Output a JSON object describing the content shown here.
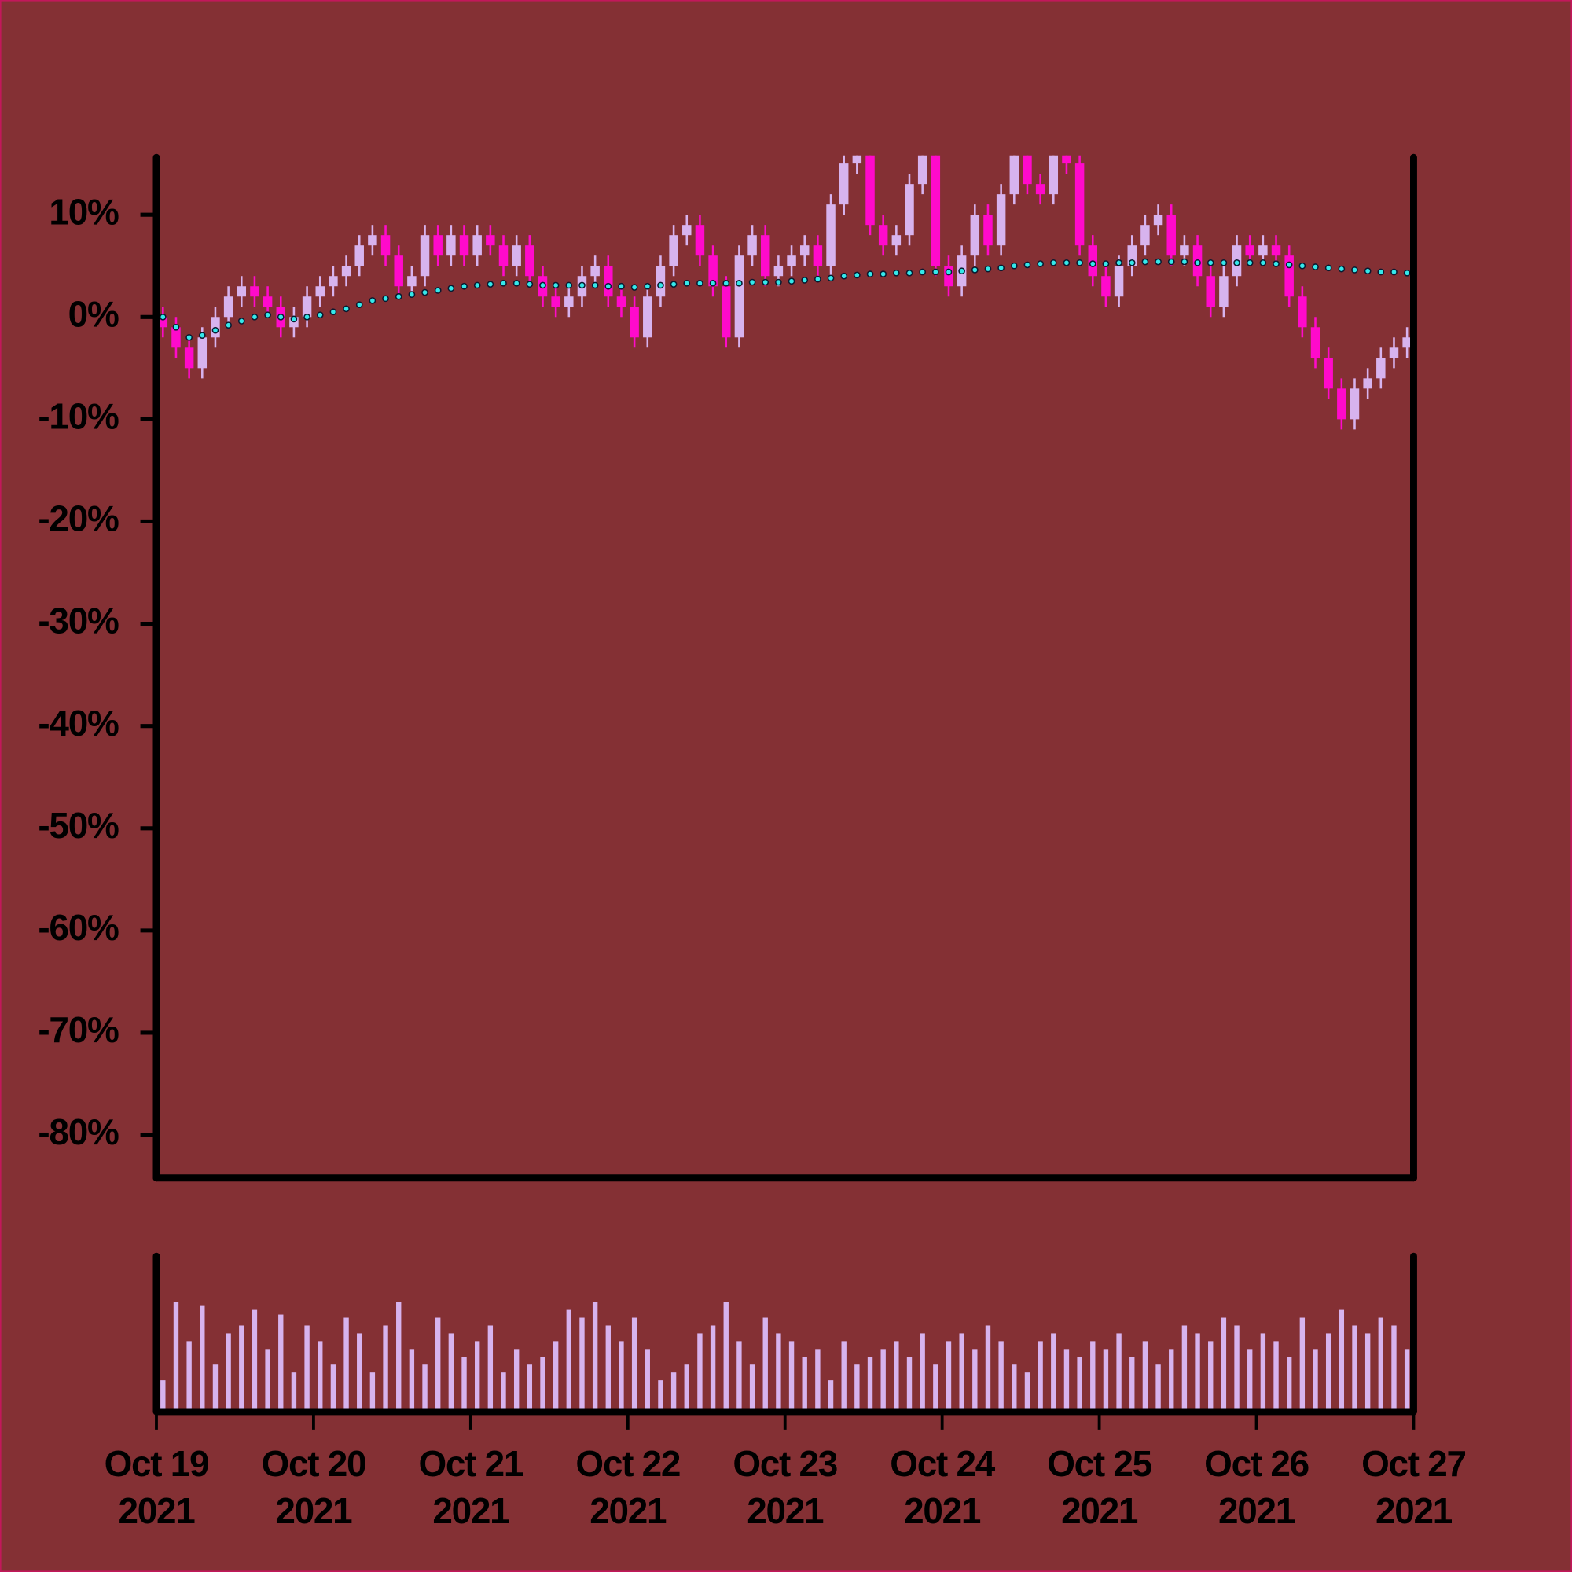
{
  "chart_data": {
    "type": "candlestick",
    "x": [
      "2021-10-19T01:00",
      "2021-10-19T03:00",
      "2021-10-19T05:00",
      "2021-10-19T07:00",
      "2021-10-19T09:00",
      "2021-10-19T11:00",
      "2021-10-19T13:00",
      "2021-10-19T15:00",
      "2021-10-19T17:00",
      "2021-10-19T19:00",
      "2021-10-19T21:00",
      "2021-10-19T23:00",
      "2021-10-20T01:00",
      "2021-10-20T03:00",
      "2021-10-20T05:00",
      "2021-10-20T07:00",
      "2021-10-20T09:00",
      "2021-10-20T11:00",
      "2021-10-20T13:00",
      "2021-10-20T15:00",
      "2021-10-20T17:00",
      "2021-10-20T19:00",
      "2021-10-20T21:00",
      "2021-10-20T23:00",
      "2021-10-21T01:00",
      "2021-10-21T03:00",
      "2021-10-21T05:00",
      "2021-10-21T07:00",
      "2021-10-21T09:00",
      "2021-10-21T11:00",
      "2021-10-21T13:00",
      "2021-10-21T15:00",
      "2021-10-21T17:00",
      "2021-10-21T19:00",
      "2021-10-21T21:00",
      "2021-10-21T23:00",
      "2021-10-22T01:00",
      "2021-10-22T03:00",
      "2021-10-22T05:00",
      "2021-10-22T07:00",
      "2021-10-22T09:00",
      "2021-10-22T11:00",
      "2021-10-22T13:00",
      "2021-10-22T15:00",
      "2021-10-22T17:00",
      "2021-10-22T19:00",
      "2021-10-22T21:00",
      "2021-10-22T23:00",
      "2021-10-23T01:00",
      "2021-10-23T03:00",
      "2021-10-23T05:00",
      "2021-10-23T07:00",
      "2021-10-23T09:00",
      "2021-10-23T11:00",
      "2021-10-23T13:00",
      "2021-10-23T15:00",
      "2021-10-23T17:00",
      "2021-10-23T19:00",
      "2021-10-23T21:00",
      "2021-10-23T23:00",
      "2021-10-24T01:00",
      "2021-10-24T03:00",
      "2021-10-24T05:00",
      "2021-10-24T07:00",
      "2021-10-24T09:00",
      "2021-10-24T11:00",
      "2021-10-24T13:00",
      "2021-10-24T15:00",
      "2021-10-24T17:00",
      "2021-10-24T19:00",
      "2021-10-24T21:00",
      "2021-10-24T23:00",
      "2021-10-25T01:00",
      "2021-10-25T03:00",
      "2021-10-25T05:00",
      "2021-10-25T07:00",
      "2021-10-25T09:00",
      "2021-10-25T11:00",
      "2021-10-25T13:00",
      "2021-10-25T15:00",
      "2021-10-25T17:00",
      "2021-10-25T19:00",
      "2021-10-25T21:00",
      "2021-10-25T23:00",
      "2021-10-26T01:00",
      "2021-10-26T03:00",
      "2021-10-26T05:00",
      "2021-10-26T07:00",
      "2021-10-26T09:00",
      "2021-10-26T11:00",
      "2021-10-26T13:00",
      "2021-10-26T15:00",
      "2021-10-26T17:00",
      "2021-10-26T19:00",
      "2021-10-26T21:00",
      "2021-10-26T23:00"
    ],
    "open": [
      0,
      -1,
      -3,
      -5,
      -2,
      0,
      2,
      3,
      2,
      1,
      -1,
      0,
      2,
      3,
      4,
      5,
      7,
      8,
      6,
      3,
      4,
      8,
      6,
      8,
      6,
      8,
      7,
      5,
      7,
      4,
      2,
      1,
      2,
      4,
      5,
      2,
      1,
      -2,
      2,
      5,
      8,
      9,
      6,
      3,
      -2,
      6,
      8,
      4,
      5,
      6,
      7,
      5,
      11,
      15,
      17,
      9,
      7,
      8,
      13,
      17,
      5,
      3,
      6,
      10,
      7,
      12,
      16,
      13,
      12,
      16,
      15,
      7,
      4,
      2,
      5,
      7,
      9,
      10,
      6,
      7,
      4,
      1,
      4,
      7,
      6,
      7,
      6,
      2,
      -1,
      -4,
      -7,
      -10,
      -7,
      -6,
      -4,
      -3
    ],
    "high": [
      1,
      0,
      -2,
      -1,
      1,
      3,
      4,
      4,
      3,
      2,
      1,
      3,
      4,
      5,
      6,
      8,
      9,
      9,
      7,
      5,
      9,
      9,
      9,
      9,
      9,
      9,
      8,
      8,
      8,
      5,
      3,
      3,
      5,
      6,
      6,
      3,
      2,
      3,
      6,
      9,
      10,
      10,
      7,
      4,
      7,
      9,
      9,
      6,
      7,
      8,
      8,
      12,
      16,
      18,
      18,
      10,
      9,
      14,
      18,
      18,
      6,
      7,
      11,
      11,
      13,
      17,
      17,
      14,
      17,
      17,
      16,
      8,
      5,
      6,
      8,
      10,
      11,
      11,
      8,
      8,
      5,
      5,
      8,
      8,
      8,
      8,
      7,
      3,
      0,
      -3,
      -6,
      -6,
      -5,
      -3,
      -2,
      -1
    ],
    "low": [
      -2,
      -4,
      -6,
      -6,
      -3,
      -1,
      1,
      1,
      0,
      -2,
      -2,
      -1,
      1,
      2,
      3,
      4,
      6,
      5,
      2,
      2,
      3,
      5,
      5,
      5,
      5,
      6,
      4,
      4,
      3,
      1,
      0,
      0,
      1,
      3,
      1,
      0,
      -3,
      -3,
      1,
      4,
      7,
      5,
      2,
      -3,
      -3,
      5,
      3,
      3,
      4,
      5,
      4,
      4,
      10,
      14,
      8,
      6,
      6,
      7,
      12,
      4,
      2,
      2,
      5,
      6,
      6,
      11,
      12,
      11,
      11,
      14,
      6,
      3,
      1,
      1,
      4,
      6,
      8,
      5,
      5,
      3,
      0,
      0,
      3,
      5,
      5,
      5,
      1,
      -2,
      -5,
      -8,
      -11,
      -11,
      -8,
      -7,
      -5,
      -4
    ],
    "close": [
      -1,
      -3,
      -5,
      -2,
      0,
      2,
      3,
      2,
      1,
      -1,
      0,
      2,
      3,
      4,
      5,
      7,
      8,
      6,
      3,
      4,
      8,
      6,
      8,
      6,
      8,
      7,
      5,
      7,
      4,
      2,
      1,
      2,
      4,
      5,
      2,
      1,
      -2,
      2,
      5,
      8,
      9,
      6,
      3,
      -2,
      6,
      8,
      4,
      5,
      6,
      7,
      5,
      11,
      15,
      17,
      9,
      7,
      8,
      13,
      17,
      5,
      3,
      6,
      10,
      7,
      12,
      16,
      13,
      12,
      16,
      15,
      7,
      4,
      2,
      5,
      7,
      9,
      10,
      6,
      7,
      4,
      1,
      4,
      7,
      6,
      7,
      6,
      2,
      -1,
      -4,
      -7,
      -10,
      -7,
      -6,
      -4,
      -3,
      -2
    ],
    "up_color": "#d7b3ee",
    "down_color": "#ff0acb",
    "moving_average": {
      "color": "#35e8ea",
      "values": [
        0,
        -1,
        -2,
        -1.8,
        -1.3,
        -0.8,
        -0.4,
        0,
        0.2,
        0,
        -0.2,
        0,
        0.2,
        0.5,
        0.8,
        1.2,
        1.6,
        1.8,
        2,
        2.2,
        2.4,
        2.6,
        2.8,
        3,
        3.1,
        3.2,
        3.3,
        3.3,
        3.2,
        3.1,
        3.1,
        3.1,
        3.1,
        3.1,
        3,
        3,
        2.9,
        3,
        3.1,
        3.2,
        3.3,
        3.3,
        3.3,
        3.3,
        3.3,
        3.4,
        3.4,
        3.4,
        3.5,
        3.6,
        3.7,
        3.8,
        4,
        4.1,
        4.2,
        4.2,
        4.3,
        4.3,
        4.4,
        4.4,
        4.4,
        4.5,
        4.6,
        4.7,
        4.8,
        5,
        5.1,
        5.2,
        5.3,
        5.3,
        5.3,
        5.2,
        5.2,
        5.3,
        5.3,
        5.4,
        5.4,
        5.4,
        5.4,
        5.3,
        5.3,
        5.3,
        5.3,
        5.3,
        5.3,
        5.2,
        5.1,
        5,
        4.9,
        4.8,
        4.7,
        4.6,
        4.5,
        4.4,
        4.4,
        4.3
      ]
    },
    "volume": [
      20,
      70,
      45,
      68,
      30,
      50,
      55,
      65,
      40,
      62,
      25,
      55,
      45,
      30,
      60,
      50,
      25,
      55,
      70,
      40,
      30,
      60,
      50,
      35,
      45,
      55,
      25,
      40,
      30,
      35,
      45,
      65,
      60,
      70,
      55,
      45,
      60,
      40,
      20,
      25,
      30,
      50,
      55,
      70,
      45,
      30,
      60,
      50,
      45,
      35,
      40,
      20,
      45,
      30,
      35,
      40,
      45,
      35,
      50,
      30,
      45,
      50,
      40,
      55,
      45,
      30,
      25,
      45,
      50,
      40,
      35,
      45,
      40,
      50,
      35,
      45,
      30,
      40,
      55,
      50,
      45,
      60,
      55,
      40,
      50,
      45,
      35,
      60,
      40,
      50,
      65,
      55,
      50,
      60,
      55,
      40
    ],
    "volume_color": "#d7b3ee",
    "volume_ylim": [
      0,
      100
    ],
    "xlim": [
      "2021-10-19T00:00",
      "2021-10-27T00:00"
    ],
    "xticks": [
      {
        "value": "2021-10-19T00:00",
        "label": [
          "Oct 19",
          "2021"
        ]
      },
      {
        "value": "2021-10-20T00:00",
        "label": [
          "Oct 20",
          "2021"
        ]
      },
      {
        "value": "2021-10-21T00:00",
        "label": [
          "Oct 21",
          "2021"
        ]
      },
      {
        "value": "2021-10-22T00:00",
        "label": [
          "Oct 22",
          "2021"
        ]
      },
      {
        "value": "2021-10-23T00:00",
        "label": [
          "Oct 23",
          "2021"
        ]
      },
      {
        "value": "2021-10-24T00:00",
        "label": [
          "Oct 24",
          "2021"
        ]
      },
      {
        "value": "2021-10-25T00:00",
        "label": [
          "Oct 25",
          "2021"
        ]
      },
      {
        "value": "2021-10-26T00:00",
        "label": [
          "Oct 26",
          "2021"
        ]
      },
      {
        "value": "2021-10-27T00:00",
        "label": [
          "Oct 27",
          "2021"
        ]
      }
    ],
    "ylim": [
      -84.2,
      15.8
    ],
    "yticks": [
      {
        "value": 10,
        "label": "10%"
      },
      {
        "value": 0,
        "label": "0%"
      },
      {
        "value": -10,
        "label": "-10%"
      },
      {
        "value": -20,
        "label": "-20%"
      },
      {
        "value": -30,
        "label": "-30%"
      },
      {
        "value": -40,
        "label": "-40%"
      },
      {
        "value": -50,
        "label": "-50%"
      },
      {
        "value": -60,
        "label": "-60%"
      },
      {
        "value": -70,
        "label": "-70%"
      },
      {
        "value": -80,
        "label": "-80%"
      }
    ]
  }
}
